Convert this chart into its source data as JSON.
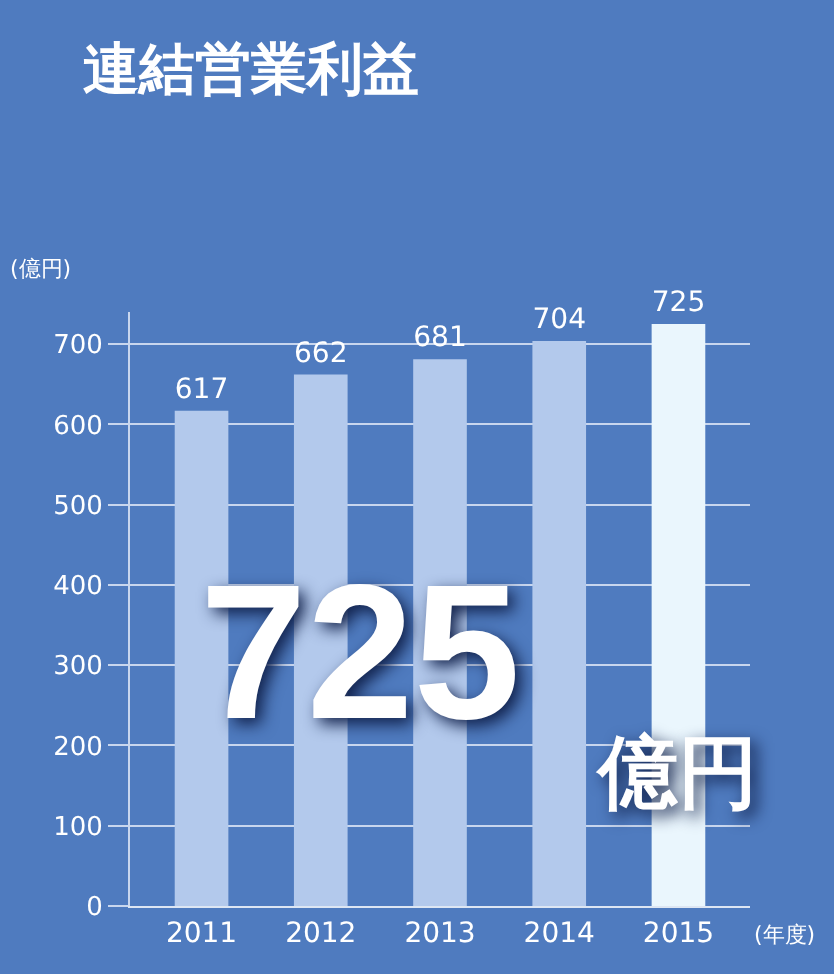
{
  "chart_data": {
    "type": "bar",
    "title": "連結営業利益",
    "xlabel": "(年度)",
    "ylabel": "(億円)",
    "categories": [
      "2011",
      "2012",
      "2013",
      "2014",
      "2015"
    ],
    "values": [
      617,
      662,
      681,
      704,
      725
    ],
    "colors": [
      "#b3c9ec",
      "#b3c9ec",
      "#b3c9ec",
      "#b3c9ec",
      "#eaf6fd"
    ],
    "ylim": [
      0,
      740
    ],
    "yticks": [
      0,
      100,
      200,
      300,
      400,
      500,
      600,
      700
    ],
    "grid": "y",
    "data_labels": true,
    "legend": false,
    "annotations": [
      "725",
      "億円"
    ]
  }
}
